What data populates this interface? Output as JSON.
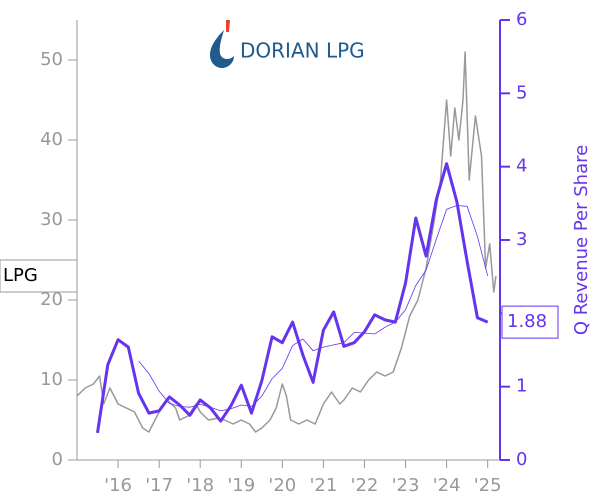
{
  "chart_data": {
    "type": "line",
    "logo_text": "DORIAN LPG",
    "ticker": "LPG",
    "y2label": "Q Revenue Per Share",
    "end_label": "1.88",
    "xlim": [
      2015,
      2025.3
    ],
    "xticks": [
      {
        "value": 2016,
        "label": "'16"
      },
      {
        "value": 2017,
        "label": "'17"
      },
      {
        "value": 2018,
        "label": "'18"
      },
      {
        "value": 2019,
        "label": "'19"
      },
      {
        "value": 2020,
        "label": "'20"
      },
      {
        "value": 2021,
        "label": "'21"
      },
      {
        "value": 2022,
        "label": "'22"
      },
      {
        "value": 2023,
        "label": "'23"
      },
      {
        "value": 2024,
        "label": "'24"
      },
      {
        "value": 2025,
        "label": "'25"
      }
    ],
    "ylim": [
      0,
      55
    ],
    "yticks": [
      0,
      10,
      20,
      30,
      40,
      50
    ],
    "y2lim": [
      0,
      6
    ],
    "y2ticks": [
      0,
      1,
      2,
      3,
      4,
      5,
      6
    ],
    "series": [
      {
        "axis": "y",
        "color": "#999999",
        "width": 1.5,
        "x": [
          2015.0,
          2015.2,
          2015.4,
          2015.55,
          2015.65,
          2015.8,
          2016.0,
          2016.2,
          2016.4,
          2016.5,
          2016.6,
          2016.75,
          2016.9,
          2017.0,
          2017.2,
          2017.4,
          2017.5,
          2017.7,
          2017.9,
          2018.0,
          2018.2,
          2018.4,
          2018.6,
          2018.8,
          2019.0,
          2019.2,
          2019.35,
          2019.5,
          2019.7,
          2019.85,
          2020.0,
          2020.1,
          2020.2,
          2020.4,
          2020.6,
          2020.8,
          2021.0,
          2021.2,
          2021.4,
          2021.5,
          2021.7,
          2021.9,
          2022.1,
          2022.3,
          2022.5,
          2022.7,
          2022.9,
          2023.1,
          2023.3,
          2023.5,
          2023.7,
          2023.85,
          2024.0,
          2024.1,
          2024.2,
          2024.3,
          2024.4,
          2024.45,
          2024.55,
          2024.7,
          2024.85,
          2024.95,
          2025.05,
          2025.15,
          2025.2
        ],
        "values": [
          8,
          9,
          9.5,
          10.5,
          7,
          9,
          7,
          6.5,
          6,
          5,
          4,
          3.5,
          5,
          6,
          7.5,
          6.5,
          5,
          5.5,
          7,
          6,
          5,
          5.2,
          5,
          4.5,
          5,
          4.5,
          3.5,
          4,
          5,
          6.5,
          9.5,
          8,
          5,
          4.5,
          5,
          4.5,
          7,
          8.5,
          7,
          7.5,
          9,
          8.5,
          10,
          11,
          10.5,
          11,
          14,
          18,
          20,
          24,
          30,
          35,
          45,
          38,
          44,
          40,
          45,
          51,
          35,
          43,
          38,
          24,
          27,
          21,
          23
        ]
      },
      {
        "axis": "y2",
        "color": "#6633ee",
        "width": 3,
        "x": [
          2015.5,
          2015.75,
          2016.0,
          2016.25,
          2016.5,
          2016.75,
          2017.0,
          2017.25,
          2017.5,
          2017.75,
          2018.0,
          2018.25,
          2018.5,
          2018.75,
          2019.0,
          2019.25,
          2019.5,
          2019.75,
          2020.0,
          2020.25,
          2020.5,
          2020.75,
          2021.0,
          2021.25,
          2021.5,
          2021.75,
          2022.0,
          2022.25,
          2022.5,
          2022.75,
          2023.0,
          2023.25,
          2023.5,
          2023.75,
          2024.0,
          2024.25,
          2024.5,
          2024.75,
          2025.0
        ],
        "values": [
          0.37,
          1.3,
          1.64,
          1.54,
          0.91,
          0.64,
          0.67,
          0.86,
          0.75,
          0.61,
          0.82,
          0.71,
          0.53,
          0.74,
          1.02,
          0.64,
          1.08,
          1.68,
          1.6,
          1.88,
          1.43,
          1.06,
          1.77,
          2.02,
          1.55,
          1.6,
          1.75,
          1.98,
          1.91,
          1.88,
          2.41,
          3.3,
          2.78,
          3.55,
          4.04,
          3.52,
          2.71,
          1.94,
          1.88
        ]
      },
      {
        "axis": "y2",
        "color": "#6633ee",
        "width": 0.8,
        "x": [
          2015.5,
          2015.75,
          2016.0,
          2016.25,
          2016.5,
          2016.75,
          2017.0,
          2017.25,
          2017.5,
          2017.75,
          2018.0,
          2018.25,
          2018.5,
          2018.75,
          2019.0,
          2019.25,
          2019.5,
          2019.75,
          2020.0,
          2020.25,
          2020.5,
          2020.75,
          2021.0,
          2021.25,
          2021.5,
          2021.75,
          2022.0,
          2022.25,
          2022.5,
          2022.75,
          2023.0,
          2023.25,
          2023.5,
          2023.75,
          2024.0,
          2024.25,
          2024.5,
          2024.75,
          2025.0
        ],
        "values": [
          null,
          null,
          null,
          null,
          1.35,
          1.18,
          0.94,
          0.77,
          0.73,
          0.72,
          0.76,
          0.72,
          0.67,
          0.7,
          0.75,
          0.73,
          0.87,
          1.11,
          1.25,
          1.56,
          1.65,
          1.49,
          1.54,
          1.57,
          1.6,
          1.74,
          1.73,
          1.72,
          1.81,
          1.88,
          2.05,
          2.38,
          2.59,
          3.01,
          3.42,
          3.47,
          3.46,
          3.05,
          2.51
        ]
      }
    ]
  }
}
